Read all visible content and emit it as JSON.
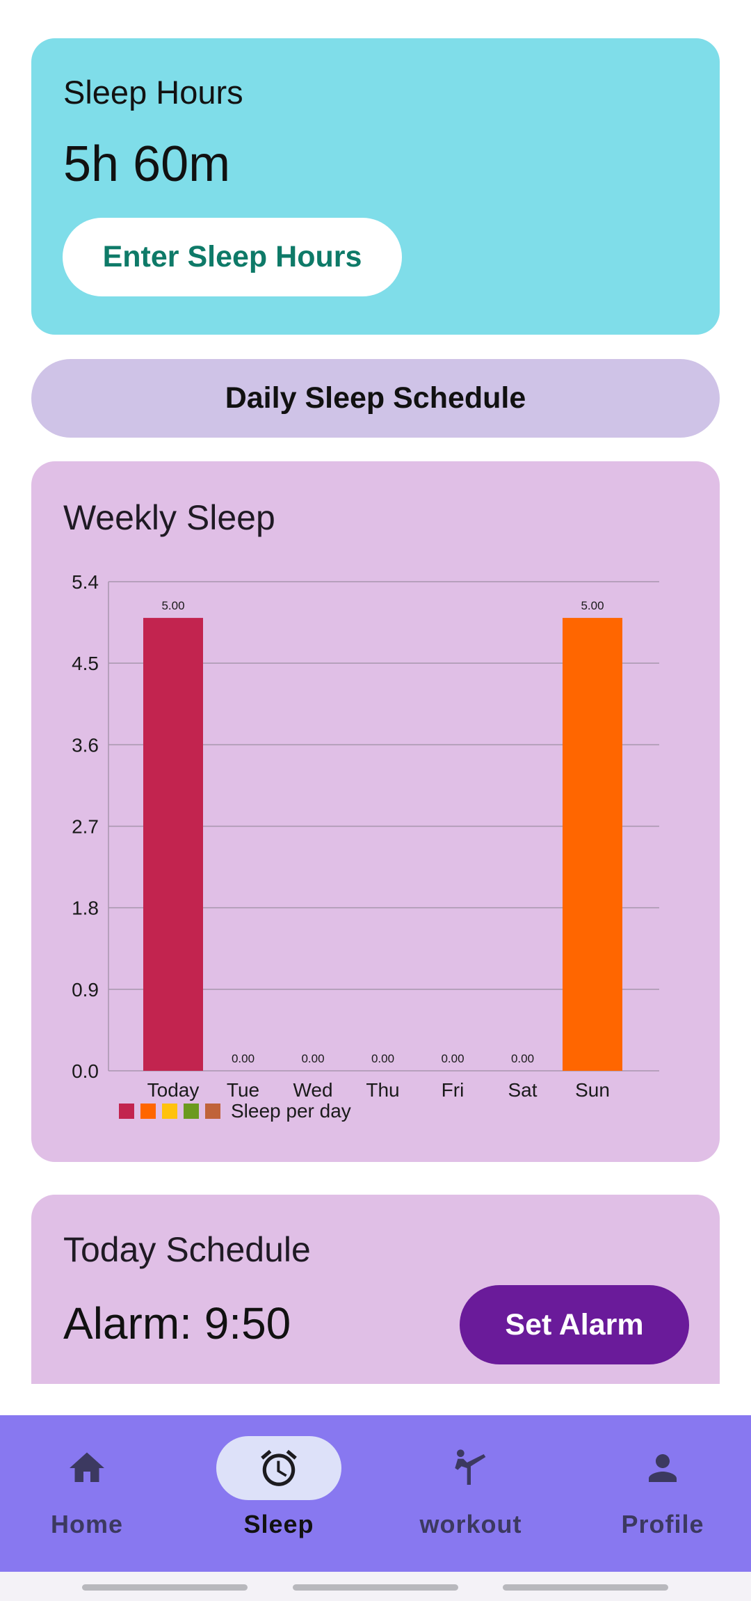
{
  "sleep_card": {
    "title": "Sleep Hours",
    "hours_value": "5h 60m",
    "enter_button": "Enter Sleep Hours"
  },
  "schedule_button": "Daily Sleep Schedule",
  "weekly_card": {
    "title": "Weekly Sleep"
  },
  "chart_data": {
    "type": "bar",
    "title": "Weekly Sleep",
    "categories": [
      "Today",
      "Tue",
      "Wed",
      "Thu",
      "Fri",
      "Sat",
      "Sun"
    ],
    "values": [
      5.0,
      0.0,
      0.0,
      0.0,
      0.0,
      0.0,
      5.0
    ],
    "value_labels": [
      "5.00",
      "0.00",
      "0.00",
      "0.00",
      "0.00",
      "0.00",
      "5.00"
    ],
    "bar_colors": [
      "#c2244f",
      "#ff6600",
      "#ffc20e",
      "#6b9a1f",
      "#c0633a",
      "#c2244f",
      "#ff6600"
    ],
    "y_ticks": [
      "0.0",
      "0.9",
      "1.8",
      "2.7",
      "3.6",
      "4.5",
      "5.4"
    ],
    "ylim": [
      0,
      5.4
    ],
    "grid": true,
    "legend": {
      "label": "Sleep per day",
      "swatches": [
        "#c2244f",
        "#ff6600",
        "#ffc20e",
        "#6b9a1f",
        "#c0633a"
      ],
      "placement": "bottom-left"
    }
  },
  "today_card": {
    "title": "Today Schedule",
    "alarm_text": "Alarm: 9:50",
    "set_alarm_button": "Set Alarm"
  },
  "bottom_nav": {
    "items": [
      {
        "label": "Home",
        "icon": "home-icon",
        "active": false
      },
      {
        "label": "Sleep",
        "icon": "alarm-clock-icon",
        "active": true
      },
      {
        "label": "workout",
        "icon": "martial-arts-icon",
        "active": false
      },
      {
        "label": "Profile",
        "icon": "person-icon",
        "active": false
      }
    ]
  },
  "colors": {
    "sleep_card_bg": "#7fdde9",
    "schedule_button_bg": "#cfc3e7",
    "card_bg": "#e0bfe6",
    "accent_teal": "#0e7a68",
    "alarm_button_bg": "#6a1b9a",
    "nav_bg": "#8878f0",
    "nav_active_pill": "#dde1f9"
  }
}
